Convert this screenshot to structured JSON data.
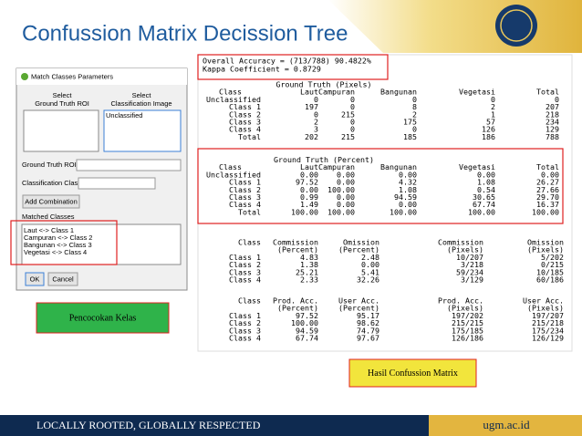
{
  "header": {
    "title": "Confussion Matrix Decission Tree"
  },
  "dialog": {
    "title": "Match Classes Parameters",
    "select_ground_truth": [
      "Select",
      "Ground Truth ROI"
    ],
    "select_classification": [
      "Select",
      "Classification Image"
    ],
    "classification_items": [
      "Unclassified"
    ],
    "ground_truth_roi_label": "Ground Truth ROI",
    "classification_class_label": "Classification Class",
    "add_button": "Add Combination",
    "matched_label": "Matched Classes",
    "matched": [
      "Laut <-> Class 1",
      "Campuran <-> Class 2",
      "Bangunan <-> Class 3",
      "Vegetasi <-> Class 4"
    ],
    "ok": "OK",
    "cancel": "Cancel"
  },
  "callouts": {
    "left": "Pencocokan Kelas",
    "right": "Hasil Confussion Matrix"
  },
  "report": {
    "accuracy": "Overall Accuracy = (713/788)  90.4822%",
    "kappa": "Kappa Coefficient = 0.8729",
    "pixels": {
      "title": "Ground Truth (Pixels)",
      "header": [
        "Class",
        "Laut",
        "Campuran",
        "Bangunan",
        "Vegetasi",
        "Total"
      ],
      "rows": [
        [
          "Unclassified",
          "0",
          "0",
          "0",
          "0",
          "0"
        ],
        [
          "Class 1",
          "197",
          "0",
          "8",
          "2",
          "207"
        ],
        [
          "Class 2",
          "0",
          "215",
          "2",
          "1",
          "218"
        ],
        [
          "Class 3",
          "2",
          "0",
          "175",
          "57",
          "234"
        ],
        [
          "Class 4",
          "3",
          "0",
          "0",
          "126",
          "129"
        ],
        [
          "Total",
          "202",
          "215",
          "185",
          "186",
          "788"
        ]
      ]
    },
    "percent": {
      "title": "Ground Truth (Percent)",
      "header": [
        "Class",
        "Laut",
        "Campuran",
        "Bangunan",
        "Vegetasi",
        "Total"
      ],
      "rows": [
        [
          "Unclassified",
          "0.00",
          "0.00",
          "0.00",
          "0.00",
          "0.00"
        ],
        [
          "Class 1",
          "97.52",
          "0.00",
          "4.32",
          "1.08",
          "26.27"
        ],
        [
          "Class 2",
          "0.00",
          "100.00",
          "1.08",
          "0.54",
          "27.66"
        ],
        [
          "Class 3",
          "0.99",
          "0.00",
          "94.59",
          "30.65",
          "29.70"
        ],
        [
          "Class 4",
          "1.49",
          "0.00",
          "0.00",
          "67.74",
          "16.37"
        ],
        [
          "Total",
          "100.00",
          "100.00",
          "100.00",
          "100.00",
          "100.00"
        ]
      ]
    },
    "errors": {
      "header": [
        "Class",
        "Commission",
        "Omission",
        "Commission",
        "Omission"
      ],
      "header2": [
        "(Percent)",
        "(Percent)",
        "(Pixels)",
        "(Pixels)"
      ],
      "rows": [
        [
          "Class 1",
          "4.83",
          "2.48",
          "10/207",
          "5/202"
        ],
        [
          "Class 2",
          "1.38",
          "0.00",
          "3/218",
          "0/215"
        ],
        [
          "Class 3",
          "25.21",
          "5.41",
          "59/234",
          "10/185"
        ],
        [
          "Class 4",
          "2.33",
          "32.26",
          "3/129",
          "60/186"
        ]
      ]
    },
    "accuracies": {
      "header": [
        "Class",
        "Prod. Acc.",
        "User Acc.",
        "Prod. Acc.",
        "User Acc."
      ],
      "header2": [
        "(Percent)",
        "(Percent)",
        "(Pixels)",
        "(Pixels)"
      ],
      "rows": [
        [
          "Class 1",
          "97.52",
          "95.17",
          "197/202",
          "197/207"
        ],
        [
          "Class 2",
          "100.00",
          "98.62",
          "215/215",
          "215/218"
        ],
        [
          "Class 3",
          "94.59",
          "74.79",
          "175/185",
          "175/234"
        ],
        [
          "Class 4",
          "67.74",
          "97.67",
          "126/186",
          "126/129"
        ]
      ]
    }
  },
  "footer": {
    "slogan": "LOCALLY ROOTED, GLOBALLY RESPECTED",
    "url": "ugm.ac.id"
  }
}
